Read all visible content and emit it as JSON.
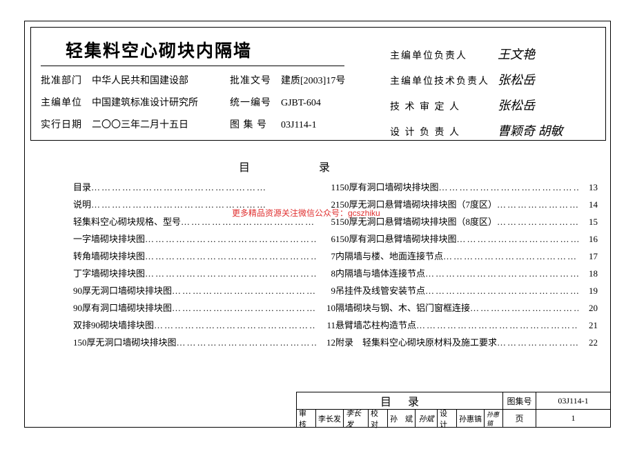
{
  "title": "轻集料空心砌块内隔墙",
  "meta_left": [
    {
      "label1": "批准部门",
      "value1": "中华人民共和国建设部",
      "label2": "批准文号",
      "value2": "建质[2003]17号"
    },
    {
      "label1": "主编单位",
      "value1": "中国建筑标准设计研究所",
      "label2": "统一编号",
      "value2": "GJBT-604"
    },
    {
      "label1": "实行日期",
      "value1": "二〇〇三年二月十五日",
      "label2": "图 集 号",
      "value2": "03J114-1"
    }
  ],
  "meta_right": [
    {
      "label": "主编单位负责人",
      "sig": "王文艳"
    },
    {
      "label": "主编单位技术负责人",
      "sig": "张松岳"
    },
    {
      "label": "技 术 审 定 人",
      "sig": "张松岳"
    },
    {
      "label": "设 计 负 责 人",
      "sig": "曹颖奇 胡敏"
    }
  ],
  "toc_heading": [
    "目",
    "录"
  ],
  "toc_left": [
    {
      "name": "目录",
      "page": "1"
    },
    {
      "name": "说明",
      "page": "2"
    },
    {
      "name": "轻集料空心砌块规格、型号",
      "page": "5"
    },
    {
      "name": "一字墙砌块排块图",
      "page": "6"
    },
    {
      "name": "转角墙砌块排块图",
      "page": "7"
    },
    {
      "name": "丁字墙砌块排块图",
      "page": "8"
    },
    {
      "name": "90厚无洞口墙砌块排块图",
      "page": "9"
    },
    {
      "name": "90厚有洞口墙砌块排块图",
      "page": "10"
    },
    {
      "name": "双排90砌块墙排块图",
      "page": "11"
    },
    {
      "name": "150厚无洞口墙砌块排块图",
      "page": "12"
    }
  ],
  "toc_right": [
    {
      "name": "150厚有洞口墙砌块排块图",
      "page": "13"
    },
    {
      "name": "150厚无洞口悬臂墙砌块排块图（7度区）",
      "page": "14"
    },
    {
      "name": "150厚无洞口悬臂墙砌块排块图（8度区）",
      "page": "15"
    },
    {
      "name": "150厚有洞口悬臂墙砌块排块图",
      "page": "16"
    },
    {
      "name": "内隔墙与楼、地面连接节点",
      "page": "17"
    },
    {
      "name": "内隔墙与墙体连接节点",
      "page": "18"
    },
    {
      "name": "吊挂件及线管安装节点",
      "page": "19"
    },
    {
      "name": "隔墙砌块与钢、木、铝门窗框连接",
      "page": "20"
    },
    {
      "name": "悬臂墙芯柱构造节点",
      "page": "21"
    },
    {
      "name": "附录　轻集料空心砌块原材料及施工要求",
      "page": "22"
    }
  ],
  "watermark": "更多精品资源关注微信公众号：gcszhiku",
  "footer": {
    "title": "目录",
    "code_label": "图集号",
    "code_value": "03J114-1",
    "row2": [
      {
        "lab": "审核",
        "val": "李长发",
        "sig": "李长发"
      },
      {
        "lab": "校对",
        "val": "孙　斌",
        "sig": "孙斌"
      },
      {
        "lab": "设计",
        "val": "孙惠镐",
        "sig": "孙惠镐"
      }
    ],
    "page_label": "页",
    "page_value": "1"
  }
}
